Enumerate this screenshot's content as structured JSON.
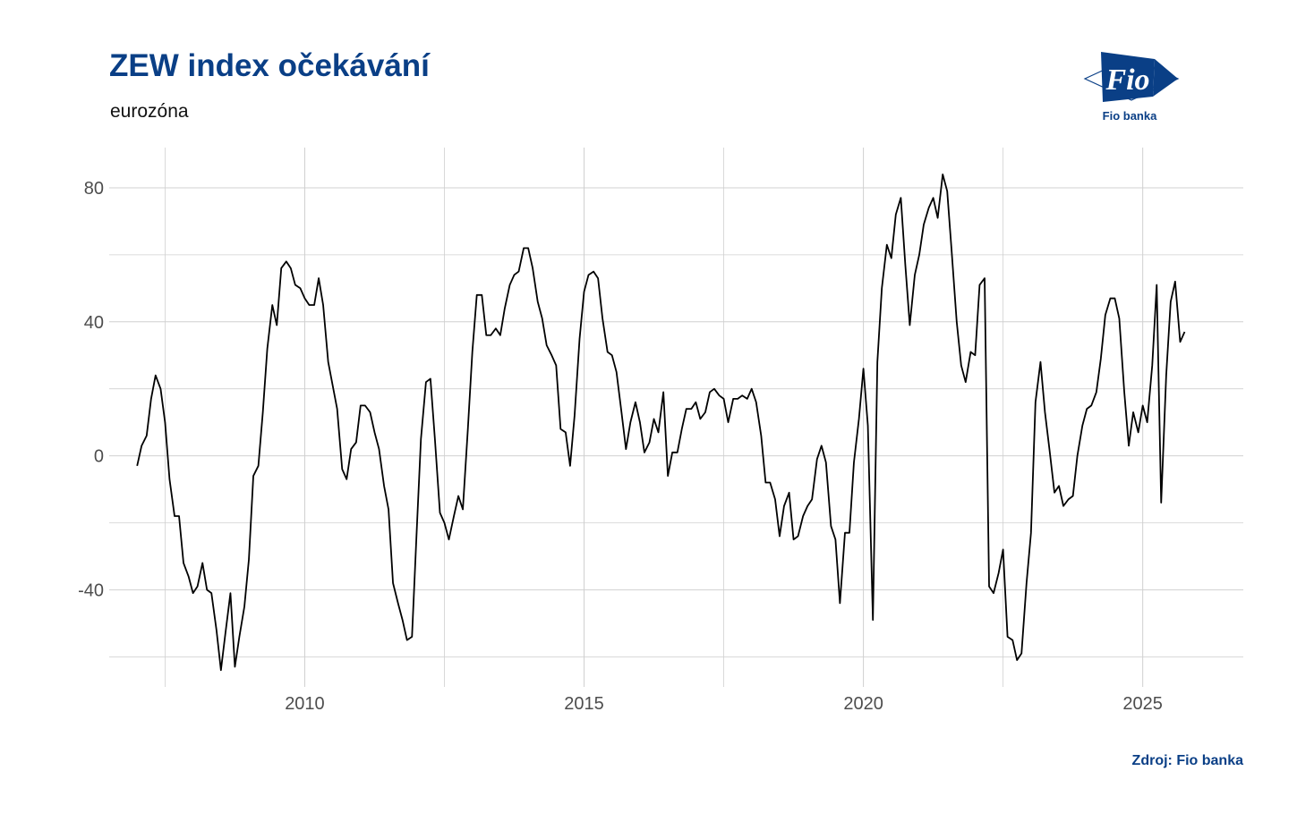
{
  "header": {
    "title": "ZEW index očekávání",
    "subtitle": "eurozóna"
  },
  "logo": {
    "text": "Fio banka",
    "mark_text": "Fio",
    "color": "#0a3f86"
  },
  "footer": {
    "source": "Zdroj: Fio banka"
  },
  "colors": {
    "title": "#0a3f86",
    "line": "#000000",
    "grid": "#d0d0d0",
    "tick_label": "#4d4d4d"
  },
  "chart_data": {
    "type": "line",
    "title": "ZEW index očekávání",
    "subtitle": "eurozóna",
    "xlabel": "",
    "ylabel": "",
    "xlim": [
      2006.5,
      2026.8
    ],
    "ylim": [
      -69,
      92
    ],
    "x_ticks": [
      2010,
      2015,
      2020,
      2025
    ],
    "x_tick_labels": [
      "2010",
      "2015",
      "2020",
      "2025"
    ],
    "y_ticks": [
      -40,
      0,
      40,
      80
    ],
    "y_tick_labels": [
      "-40",
      "0",
      "40",
      "80"
    ],
    "grid": true,
    "legend": "none",
    "series": [
      {
        "x": [
          2007.0,
          2007.08,
          2007.17,
          2007.25,
          2007.33,
          2007.42,
          2007.5,
          2007.58,
          2007.67,
          2007.75,
          2007.83,
          2007.92,
          2008.0,
          2008.08,
          2008.17,
          2008.25,
          2008.33,
          2008.42,
          2008.5,
          2008.58,
          2008.67,
          2008.75,
          2008.83,
          2008.92,
          2009.0,
          2009.08,
          2009.17,
          2009.25,
          2009.33,
          2009.42,
          2009.5,
          2009.58,
          2009.67,
          2009.75,
          2009.83,
          2009.92,
          2010.0,
          2010.08,
          2010.17,
          2010.25,
          2010.33,
          2010.42,
          2010.5,
          2010.58,
          2010.67,
          2010.75,
          2010.83,
          2010.92,
          2011.0,
          2011.08,
          2011.17,
          2011.25,
          2011.33,
          2011.42,
          2011.5,
          2011.58,
          2011.67,
          2011.75,
          2011.83,
          2011.92,
          2012.0,
          2012.08,
          2012.17,
          2012.25,
          2012.33,
          2012.42,
          2012.5,
          2012.58,
          2012.67,
          2012.75,
          2012.83,
          2012.92,
          2013.0,
          2013.08,
          2013.17,
          2013.25,
          2013.33,
          2013.42,
          2013.5,
          2013.58,
          2013.67,
          2013.75,
          2013.83,
          2013.92,
          2014.0,
          2014.08,
          2014.17,
          2014.25,
          2014.33,
          2014.42,
          2014.5,
          2014.58,
          2014.67,
          2014.75,
          2014.83,
          2014.92,
          2015.0,
          2015.08,
          2015.17,
          2015.25,
          2015.33,
          2015.42,
          2015.5,
          2015.58,
          2015.67,
          2015.75,
          2015.83,
          2015.92,
          2016.0,
          2016.08,
          2016.17,
          2016.25,
          2016.33,
          2016.42,
          2016.5,
          2016.58,
          2016.67,
          2016.75,
          2016.83,
          2016.92,
          2017.0,
          2017.08,
          2017.17,
          2017.25,
          2017.33,
          2017.42,
          2017.5,
          2017.58,
          2017.67,
          2017.75,
          2017.83,
          2017.92,
          2018.0,
          2018.08,
          2018.17,
          2018.25,
          2018.33,
          2018.42,
          2018.5,
          2018.58,
          2018.67,
          2018.75,
          2018.83,
          2018.92,
          2019.0,
          2019.08,
          2019.17,
          2019.25,
          2019.33,
          2019.42,
          2019.5,
          2019.58,
          2019.67,
          2019.75,
          2019.83,
          2019.92,
          2020.0,
          2020.08,
          2020.17,
          2020.25,
          2020.33,
          2020.42,
          2020.5,
          2020.58,
          2020.67,
          2020.75,
          2020.83,
          2020.92,
          2021.0,
          2021.08,
          2021.17,
          2021.25,
          2021.33,
          2021.42,
          2021.5,
          2021.58,
          2021.67,
          2021.75,
          2021.83,
          2021.92,
          2022.0,
          2022.08,
          2022.17,
          2022.25,
          2022.33,
          2022.42,
          2022.5,
          2022.58,
          2022.67,
          2022.75,
          2022.83,
          2022.92,
          2023.0,
          2023.08,
          2023.17,
          2023.25,
          2023.33,
          2023.42,
          2023.5,
          2023.58,
          2023.67,
          2023.75,
          2023.83,
          2023.92,
          2024.0,
          2024.08,
          2024.17,
          2024.25,
          2024.33,
          2024.42,
          2024.5,
          2024.58,
          2024.67,
          2024.75,
          2024.83,
          2024.92,
          2025.0,
          2025.08,
          2025.17,
          2025.25,
          2025.33,
          2025.42,
          2025.5,
          2025.58,
          2025.67,
          2025.75
        ],
        "values": [
          -3,
          3,
          6,
          17,
          24,
          20,
          10,
          -7,
          -18,
          -18,
          -32,
          -36,
          -41,
          -39,
          -32,
          -40,
          -41,
          -52,
          -64,
          -53,
          -41,
          -63,
          -54,
          -45,
          -31,
          -6,
          -3,
          13,
          32,
          45,
          39,
          56,
          58,
          56,
          51,
          50,
          47,
          45,
          45,
          53,
          45,
          28,
          21,
          14,
          -4,
          -7,
          2,
          4,
          15,
          15,
          13,
          7,
          2,
          -9,
          -16,
          -38,
          -44,
          -49,
          -55,
          -54,
          -24,
          5,
          22,
          23,
          5,
          -17,
          -20,
          -25,
          -18,
          -12,
          -16,
          8,
          31,
          48,
          48,
          36,
          36,
          38,
          36,
          44,
          51,
          54,
          55,
          62,
          62,
          56,
          46,
          41,
          33,
          30,
          27,
          8,
          7,
          -3,
          12,
          35,
          49,
          54,
          55,
          53,
          41,
          31,
          30,
          25,
          13,
          2,
          10,
          16,
          10,
          1,
          4,
          11,
          7,
          19,
          -6,
          1,
          1,
          8,
          14,
          14,
          16,
          11,
          13,
          19,
          20,
          18,
          17,
          10,
          17,
          17,
          18,
          17,
          20,
          16,
          6,
          -8,
          -8,
          -13,
          -24,
          -15,
          -11,
          -25,
          -24,
          -18,
          -15,
          -13,
          -1,
          3,
          -2,
          -21,
          -25,
          -44,
          -23,
          -23,
          -2,
          11,
          26,
          9,
          -49,
          28,
          50,
          63,
          59,
          72,
          77,
          57,
          39,
          54,
          60,
          69,
          74,
          77,
          71,
          84,
          79,
          61,
          40,
          27,
          22,
          31,
          30,
          51,
          53,
          -39,
          -41,
          -35,
          -28,
          -54,
          -55,
          -61,
          -59,
          -38,
          -23,
          16,
          28,
          13,
          2,
          -11,
          -9,
          -15,
          -13,
          -12,
          0,
          9,
          14,
          15,
          19,
          29,
          42,
          47,
          47,
          41,
          19,
          3,
          13,
          7,
          15,
          10,
          27,
          51,
          -14,
          24,
          46,
          52,
          34,
          37
        ]
      }
    ]
  }
}
